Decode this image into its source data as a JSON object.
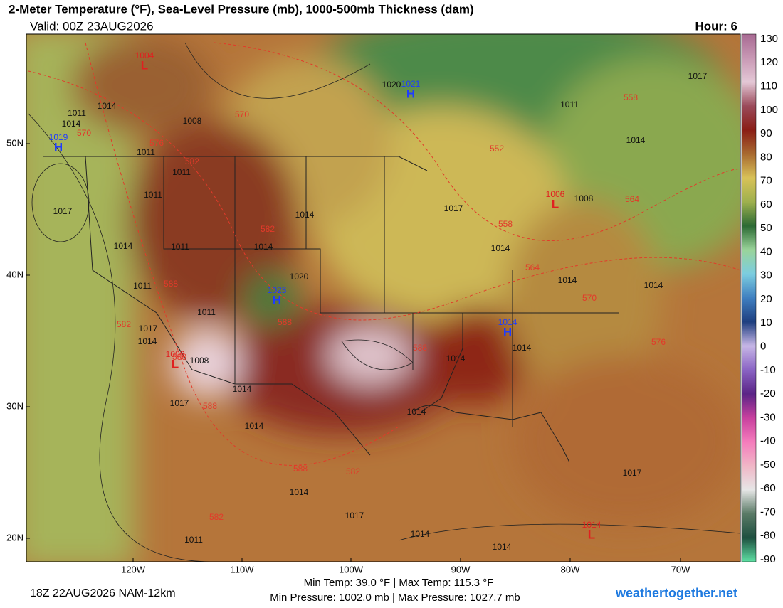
{
  "header": {
    "title": "2-Meter Temperature (°F), Sea-Level Pressure (mb), 1000-500mb Thickness (dam)",
    "valid": "Valid: 00Z 23AUG2026",
    "hour": "Hour: 6"
  },
  "colorbar": {
    "ticks": [
      130,
      120,
      110,
      100,
      90,
      80,
      70,
      60,
      50,
      40,
      30,
      20,
      10,
      0,
      -10,
      -20,
      -30,
      -40,
      -50,
      -60,
      -70,
      -80,
      -90
    ],
    "colors": [
      "#a86a92",
      "#c898b4",
      "#e4c8d6",
      "#9a4a5a",
      "#8a1e16",
      "#a86a30",
      "#d8c258",
      "#9eb04e",
      "#2c6a34",
      "#9ad49a",
      "#7ccde0",
      "#3f7fc0",
      "#1e3f80",
      "#c6b6e6",
      "#8a64c4",
      "#5a2486",
      "#c8409e",
      "#f47cbc",
      "#f0b6c6",
      "#e6e6e6",
      "#5a7a66",
      "#1e5040",
      "#5ee0a4"
    ]
  },
  "axes": {
    "lat": [
      "50N",
      "40N",
      "30N",
      "20N"
    ],
    "lon": [
      "120W",
      "110W",
      "100W",
      "90W",
      "80W",
      "70W"
    ]
  },
  "centers": [
    {
      "letter": "H",
      "value": 1021
    },
    {
      "letter": "H",
      "value": 1019
    },
    {
      "letter": "H",
      "value": 1023
    },
    {
      "letter": "H",
      "value": 1014
    },
    {
      "letter": "L",
      "value": 1006
    },
    {
      "letter": "L",
      "value": 1006
    },
    {
      "letter": "L",
      "value": 1004
    },
    {
      "letter": "L",
      "value": 1014
    }
  ],
  "isobar_labels": [
    1017,
    1011,
    1014,
    1008,
    1011,
    1011,
    1014,
    1011,
    1014,
    1017,
    1014,
    1011,
    1017,
    1014,
    1008,
    1011,
    1014,
    1017,
    1014,
    1014,
    1011,
    1017,
    1008,
    1014,
    1011,
    1014,
    1014,
    1014,
    1014,
    1014,
    1017,
    1014,
    1014,
    1011,
    1020,
    1014,
    1020,
    1017,
    1014
  ],
  "thickness_labels": [
    570,
    576,
    570,
    582,
    582,
    588,
    582,
    588,
    588,
    588,
    588,
    552,
    558,
    558,
    564,
    564,
    570,
    576,
    582,
    588,
    582
  ],
  "footer": {
    "run": "18Z 22AUG2026 NAM-12km",
    "temp": "Min Temp:  39.0 °F | Max Temp: 115.3 °F",
    "pressure": "Min Pressure: 1002.0 mb | Max Pressure: 1027.7 mb",
    "site": "weathertogether.net"
  }
}
